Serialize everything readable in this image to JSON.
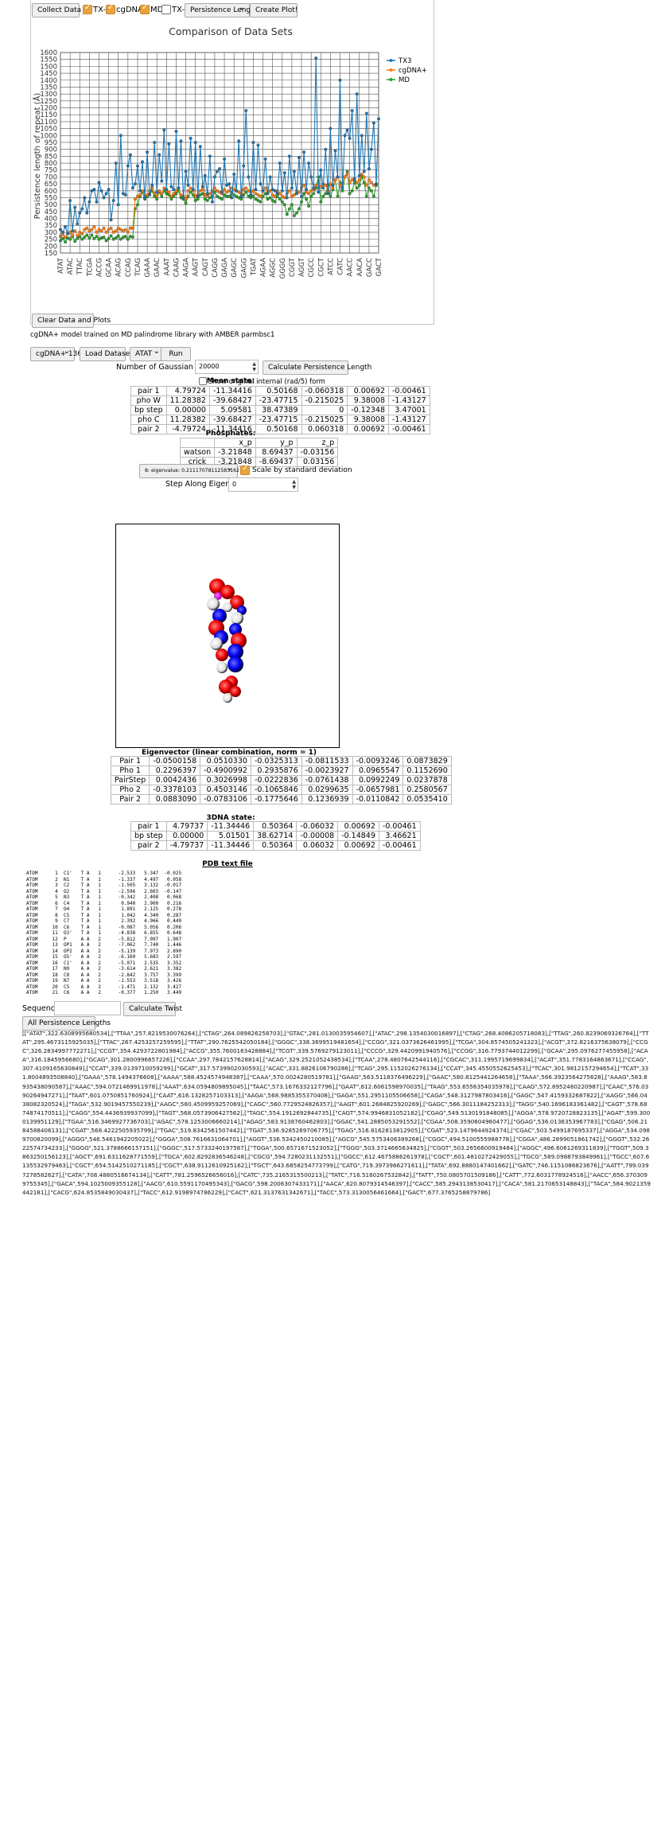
{
  "toolbar": {
    "collect_label": "Collect Data",
    "checkboxes": [
      {
        "label": "TX-3",
        "checked": true
      },
      {
        "label": "cgDNA+",
        "checked": true
      },
      {
        "label": "MD",
        "checked": true
      },
      {
        "label": "TX-2",
        "checked": false
      }
    ],
    "metric_select": "Persistence Length",
    "create_plot_label": "Create Plot!",
    "clear_label": "Clear Data and Plots"
  },
  "chart_data": {
    "type": "line",
    "title": "Comparison of Data Sets",
    "ylabel": "Persistence length of repeat (Å)",
    "ylim": [
      150,
      1600
    ],
    "yticks": [
      150,
      200,
      250,
      300,
      350,
      400,
      450,
      500,
      550,
      600,
      650,
      700,
      750,
      800,
      850,
      900,
      950,
      1000,
      1050,
      1100,
      1150,
      1200,
      1250,
      1300,
      1350,
      1400,
      1450,
      1500,
      1550,
      1600
    ],
    "grid": true,
    "legend_position": "top-right",
    "category_labels": [
      "ATAT",
      "ATAC",
      "TTAC",
      "TCGA",
      "ACCG",
      "GCAA",
      "ACAG",
      "CCAG",
      "TCAG",
      "GAAA",
      "GAAC",
      "AAAT",
      "CAAG",
      "AAGA",
      "AAGT",
      "CAGT",
      "CAGG",
      "GAGA",
      "GAGC",
      "GAGG",
      "TGAT",
      "AGAA",
      "AGGC",
      "GGGG",
      "CGGT",
      "AGGT",
      "CGCC",
      "CGCT",
      "ATCC",
      "CATC",
      "AACC",
      "AACA",
      "GACC",
      "GACT"
    ],
    "colors": {
      "TX3": "#1f77b4",
      "cgDNA+": "#ff7f0e",
      "MD": "#2ca02c"
    },
    "series": [
      {
        "name": "TX3",
        "values": [
          320,
          300,
          340,
          290,
          530,
          310,
          480,
          360,
          440,
          470,
          550,
          440,
          520,
          600,
          610,
          520,
          660,
          600,
          550,
          580,
          610,
          390,
          530,
          800,
          500,
          1000,
          580,
          570,
          780,
          860,
          620,
          650,
          780,
          600,
          810,
          550,
          880,
          570,
          640,
          950,
          590,
          860,
          670,
          1040,
          610,
          940,
          630,
          610,
          1030,
          620,
          960,
          550,
          740,
          640,
          980,
          610,
          950,
          560,
          920,
          630,
          710,
          580,
          850,
          520,
          700,
          740,
          760,
          590,
          830,
          640,
          650,
          550,
          720,
          600,
          960,
          560,
          780,
          1180,
          700,
          570,
          950,
          610,
          930,
          650,
          600,
          830,
          580,
          700,
          610,
          600,
          580,
          800,
          600,
          730,
          550,
          850,
          620,
          740,
          580,
          840,
          560,
          880,
          610,
          800,
          700,
          620,
          1560,
          590,
          750,
          620,
          900,
          580,
          1050,
          640,
          890,
          700,
          1400,
          620,
          1000,
          1040,
          980,
          1180,
          680,
          1300,
          710,
          1000,
          740,
          1160,
          760,
          900,
          1090,
          650,
          1120
        ]
      },
      {
        "name": "cgDNA+",
        "values": [
          270,
          285,
          265,
          290,
          300,
          280,
          310,
          275,
          300,
          290,
          320,
          330,
          310,
          320,
          340,
          300,
          320,
          310,
          330,
          300,
          320,
          330,
          300,
          310,
          330,
          320,
          310,
          320,
          300,
          330,
          330,
          540,
          560,
          570,
          600,
          560,
          570,
          600,
          620,
          580,
          560,
          600,
          580,
          620,
          600,
          590,
          560,
          580,
          600,
          620,
          570,
          560,
          540,
          600,
          620,
          600,
          560,
          570,
          600,
          610,
          570,
          560,
          580,
          600,
          620,
          600,
          590,
          580,
          610,
          590,
          600,
          620,
          610,
          600,
          590,
          580,
          610,
          620,
          600,
          590,
          600,
          580,
          570,
          560,
          600,
          620,
          590,
          600,
          570,
          560,
          600,
          580,
          560,
          550,
          580,
          600,
          560,
          570,
          600,
          590,
          620,
          640,
          590,
          580,
          600,
          610,
          640,
          620,
          630,
          650,
          640,
          600,
          650,
          620,
          680,
          700,
          640,
          650,
          700,
          720,
          660,
          680,
          690,
          660,
          680,
          720,
          700,
          640,
          680,
          660,
          640,
          650
        ]
      },
      {
        "name": "MD",
        "values": [
          240,
          255,
          230,
          260,
          250,
          270,
          235,
          255,
          270,
          250,
          265,
          280,
          260,
          280,
          255,
          270,
          250,
          260,
          265,
          240,
          255,
          275,
          250,
          260,
          275,
          250,
          265,
          270,
          250,
          270,
          265,
          470,
          500,
          560,
          590,
          540,
          560,
          580,
          600,
          560,
          540,
          590,
          560,
          600,
          580,
          570,
          540,
          560,
          580,
          600,
          550,
          540,
          510,
          560,
          590,
          570,
          530,
          540,
          570,
          580,
          540,
          530,
          550,
          560,
          590,
          560,
          550,
          540,
          570,
          560,
          560,
          590,
          570,
          560,
          550,
          540,
          570,
          590,
          560,
          550,
          560,
          540,
          530,
          520,
          560,
          580,
          540,
          550,
          530,
          520,
          560,
          540,
          520,
          500,
          430,
          470,
          500,
          420,
          440,
          470,
          520,
          580,
          540,
          490,
          560,
          580,
          620,
          700,
          520,
          560,
          580,
          640,
          560,
          610,
          680,
          560,
          660,
          600,
          700,
          740,
          580,
          600,
          660,
          620,
          640,
          700,
          660,
          560,
          620,
          600,
          560,
          640
        ]
      }
    ]
  },
  "model_caption": "cgDNA+ model trained on MD palindrome library with AMBER parmbsc1",
  "controls": {
    "model_select": "cgDNA+ 136",
    "load_label": "Load Dataset",
    "seq_select": "ATAT",
    "run_label": "Run",
    "samples_label": "Number of Gaussian samples",
    "samples_value": "20000",
    "calc_pl_label": "Calculate Persistence Length"
  },
  "mean_state": {
    "title": "Mean state:",
    "show_label": "Show original internal (rad/5) form",
    "rows": [
      [
        "pair 1",
        "4.79724",
        "-11.34416",
        "0.50168",
        "-0.060318",
        "0.00692",
        "-0.00461"
      ],
      [
        "pho W",
        "11.28382",
        "-39.68427",
        "-23.47715",
        "-0.215025",
        "9.38008",
        "-1.43127"
      ],
      [
        "bp step",
        "0.00000",
        "5.09581",
        "38.47389",
        "0",
        "-0.12348",
        "3.47001"
      ],
      [
        "pho C",
        "11.28382",
        "-39.68427",
        "-23.47715",
        "-0.215025",
        "9.38008",
        "-1.43127"
      ],
      [
        "pair 2",
        "-4.79724",
        "-11.34416",
        "0.50168",
        "0.060318",
        "0.00692",
        "-0.00461"
      ]
    ]
  },
  "phosphates": {
    "title": "Phosphates:",
    "header": [
      "",
      "x_p",
      "y_p",
      "z_p"
    ],
    "rows": [
      [
        "watson",
        "-3.21848",
        "8.69437",
        "-0.03156"
      ],
      [
        "crick",
        "-3.21848",
        "-8.69437",
        "0.03156"
      ]
    ]
  },
  "eigen": {
    "select": "8: eigenvalue: 0.21117078112583162",
    "scale_label": "Scale by standard deviation",
    "scale_checked": true,
    "step_label": "Step Along Eigenvector",
    "step_value": "0"
  },
  "eigenvector": {
    "title": "Eigenvector (linear combination, norm = 1)",
    "rows": [
      [
        "Pair 1",
        "-0.0500158",
        "0.0510330",
        "-0.0325313",
        "-0.0811533",
        "-0.0093246",
        "0.0873829"
      ],
      [
        "Pho 1",
        "0.2296397",
        "-0.4900992",
        "0.2935876",
        "-0.0023927",
        "0.0965547",
        "0.1152690"
      ],
      [
        "PairStep",
        "0.0042436",
        "0.3026998",
        "-0.0222836",
        "-0.0761438",
        "0.0992249",
        "0.0237878"
      ],
      [
        "Pho 2",
        "-0.3378103",
        "0.4503146",
        "-0.1065846",
        "0.0299635",
        "-0.0657981",
        "0.2580567"
      ],
      [
        "Pair 2",
        "0.0883090",
        "-0.0783106",
        "-0.1775646",
        "0.1236939",
        "-0.0110842",
        "0.0535410"
      ]
    ]
  },
  "dna3": {
    "title": "3DNA state:",
    "rows": [
      [
        "pair 1",
        "4.79737",
        "-11.34446",
        "0.50364",
        "-0.06032",
        "0.00692",
        "-0.00461"
      ],
      [
        "bp step",
        "0.00000",
        "5.01501",
        "38.62714",
        "-0.00008",
        "-0.14849",
        "3.46621"
      ],
      [
        "pair 2",
        "-4.79737",
        "-11.34446",
        "0.50364",
        "0.06032",
        "0.00692",
        "-0.00461"
      ]
    ]
  },
  "pdb": {
    "title": "PDB text file",
    "text": "ATOM      1  C1'   T A   1      -2.533   5.347  -0.025\nATOM      2  N1    T A   1      -1.337   4.497   0.058\nATOM      3  C2    T A   1      -1.505   3.132  -0.017\nATOM      4  O2    T A   1      -2.596   2.603  -0.147\nATOM      5  N3    T A   1      -0.342   2.408   0.068\nATOM      6  C4    T A   1       0.940   2.900   0.216\nATOM      7  O4    T A   1       1.891   2.125   0.278\nATOM      8  C5    T A   1       1.042   4.340   0.287\nATOM      9  C7    T A   1       2.392   4.966   0.449\nATOM     10  C6    T A   1      -0.087   5.056   0.206\nATOM     11  O3'   T A   1      -4.838   6.855   0.648\nATOM     12  P     A A   2      -5.812   7.097   1.907\nATOM     13  OP1   A A   2      -7.062   7.740   1.446\nATOM     14  OP2   A A   2      -5.139   7.973   2.890\nATOM     15  O5'   A A   2      -6.160   5.683   2.597\nATOM     16  C1'   A A   2      -5.071   2.535   3.352\nATOM     17  N9    A A   2      -3.614   2.621   3.382\nATOM     18  C8    A A   2      -2.842   3.757   3.399\nATOM     19  N7    A A   2      -1.553   3.518   3.426\nATOM     20  C5    A A   2      -1.471   2.132   3.427\nATOM     21  C6    A A   2      -0.377   1.250   3.449\nATOM     22  N6    A A   2       0.897   1.650   3.476\nATOM     23  N1    A A   2      -0.588  -0.071   3.436"
  },
  "sequence": {
    "label": "Sequence:",
    "value": "",
    "calc_twist_label": "Calculate Twist",
    "all_pl_label": "All Persistence Lengths"
  },
  "output_text": "[[\"ATAT\",322.6308995680534],[\"TTAA\",257.8219530076264],[\"CTAG\",264.089826258703],[\"GTAC\",281.0130035954607],[\"ATAC\",298.1354030016897],[\"CTAG\",268.4086205718083],[\"TTAG\",260.8239069326764],[\"TTAT\",295.4673115925035],[\"TTAC\",267.4253257259595],[\"TTAT\",290.7625542050184],[\"GGGC\",338.3699519481654],[\"CCGG\",321.0373626461995],[\"TCGA\",304.8574505241323],[\"ACGT\",372.8216375638079],[\"CCGC\",326.2834997772271],[\"CCGT\",354.4293722801984],[\"ACCG\",355.7600163428884],[\"TCGT\",339.5769279123011],[\"CCCG\",329.4420991940576],[\"CCGG\",316.7793744012299],[\"GCAA\",295.0976277455958],[\"ACAA\",316.1845956680],[\"GCAG\",301.2800996657226],[\"CCAA\",297.7842157628814],[\"ACAG\",329.2521052438534],[\"TCAA\",278.4807642544116],[\"CGCAC\",311.1995719699834],[\"ACAT\",351.7783164863671],[\"CCAG\",307.4109165630849],[\"CCAT\",339.0139710059299],[\"GCAT\",317.5739902030593],[\"ACAC\",331.8826106790286],[\"TCAG\",295.1152026276134],[\"CCAT\",345.4550552625453],[\"TCAC\",301.9812157294654],[\"TCAT\",331.8004893508840],[\"GAAA\",578.1494376608],[\"AAAA\",588.4524574948387],[\"CAAA\",570.0024280519781],[\"GAAG\",563.5118376496229],[\"GAAC\",580.8125441264658],[\"TAAA\",566.3923564275628],[\"AAAG\",583.8935438090587],[\"AAAC\",594.0721469911978],[\"AAAT\",634.0594809895045],[\"TAAC\",573.1676332127796],[\"GAAT\",612.6061598970035],[\"TAAG\",553.6556354035978],[\"CAAG\",572.8952480220987],[\"CAAC\",576.0390264947271],[\"TAAT\",601.0750851760924],[\"CAAT\",616.1328257103313],[\"AAGA\",568.9885355370408],[\"GAGA\",551.2951105506658],[\"CAGA\",548.3127987803416],[\"GAGC\",547.4159332687822],[\"AAGG\",566.0438082320524],[\"TAGA\",532.9019457550239],[\"AAGC\",580.4509959257069],[\"CAGC\",560.7729524826357],[\"AAGT\",601.2684825920269],[\"GAGC\",566.3011184252313],[\"TAGG\",540.1696183361482],[\"CAGT\",578.6874874170511],[\"CAGG\",554.4436939937099],[\"TAGT\",568.0573906427562],[\"TAGC\",554.1912692844735],[\"CAGT\",574.9946831052182],[\"CGAG\",549.5130191848085],[\"AGGA\",578.9720728823135],[\"AGAT\",599.3000139951129],[\"TGAA\",516.3469927736703],[\"AGAC\",578.1253006660214],[\"AGAG\",583.9138760462803],[\"GGAC\",541.2885053291552],[\"CGAA\",508.3590604960477],[\"GGAG\",536.0136353967783],[\"CGAG\",506.2184588406131],[\"CGAT\",568.4222505935799],[\"TGAC\",519.8342561507442],[\"TGAT\",536.9285269706775],[\"TGAG\",516.8162813812905],[\"CGAT\",523.1479644924374],[\"CGAC\",503.5499187695337],[\"AGGA\",534.0989700820099],[\"AGGG\",546.5461942205022],[\"GGGA\",508.7616631064701],[\"AGGT\",536.5342450210085],[\"AGCG\",545.5753406389268],[\"CGGC\",494.5100555988778],[\"CGGA\",486.2899051861742],[\"GGGT\",532.2622574734233],[\"GGGG\",521.3788666157151],[\"GGGC\",517.5733240197587],[\"TGGA\",500.6571671523052],[\"TGGG\",503.3714665634825],[\"CGGT\",503.2656600919484],[\"AGGC\",496.6061269311839],[\"TGGT\",509.3863250156123],[\"AGCT\",691.6311628771559],[\"TGCA\",602.8292836546248],[\"CGCG\",594.7280231132551],[\"GGCC\",612.4675886261978],[\"CGCT\",601.4810272429055],[\"TGCG\",589.0988793849961],[\"TGCC\",607.6135532979463],[\"CGCT\",654.5142510271185],[\"CGCT\",638.9112610925162],[\"TGCT\",643.6858254773799],[\"CATG\",719.3973966271611],[\"TATA\",692.8880147401662],[\"GATC\",746.1151086823676],[\"AATT\",799.0397278582627],[\"CATA\",708.4880516674134],[\"CATT\",781.2596526656016],[\"CATC\",735.2165315500213],[\"TATC\",716.5160267532842],[\"TATT\",750.0805701509186],[\"CATT\",772.6031778924516],[\"AACC\",656.3703099755345],[\"GACA\",594.1025009355128],[\"AACG\",610.5591170495343],[\"GACG\",598.2006307433171],[\"AACA\",620.8079314546397],[\"CACC\",585.2943138530417],[\"CACA\",581.2170653148843],[\"TACA\",584.9021359442181],[\"CACG\",624.8535849030437],[\"TACC\",612.9198974786229],[\"CACT\",621.3137631342671],[\"TACC\",573.3130056461664],[\"GACT\",677.3765258879786]"
}
